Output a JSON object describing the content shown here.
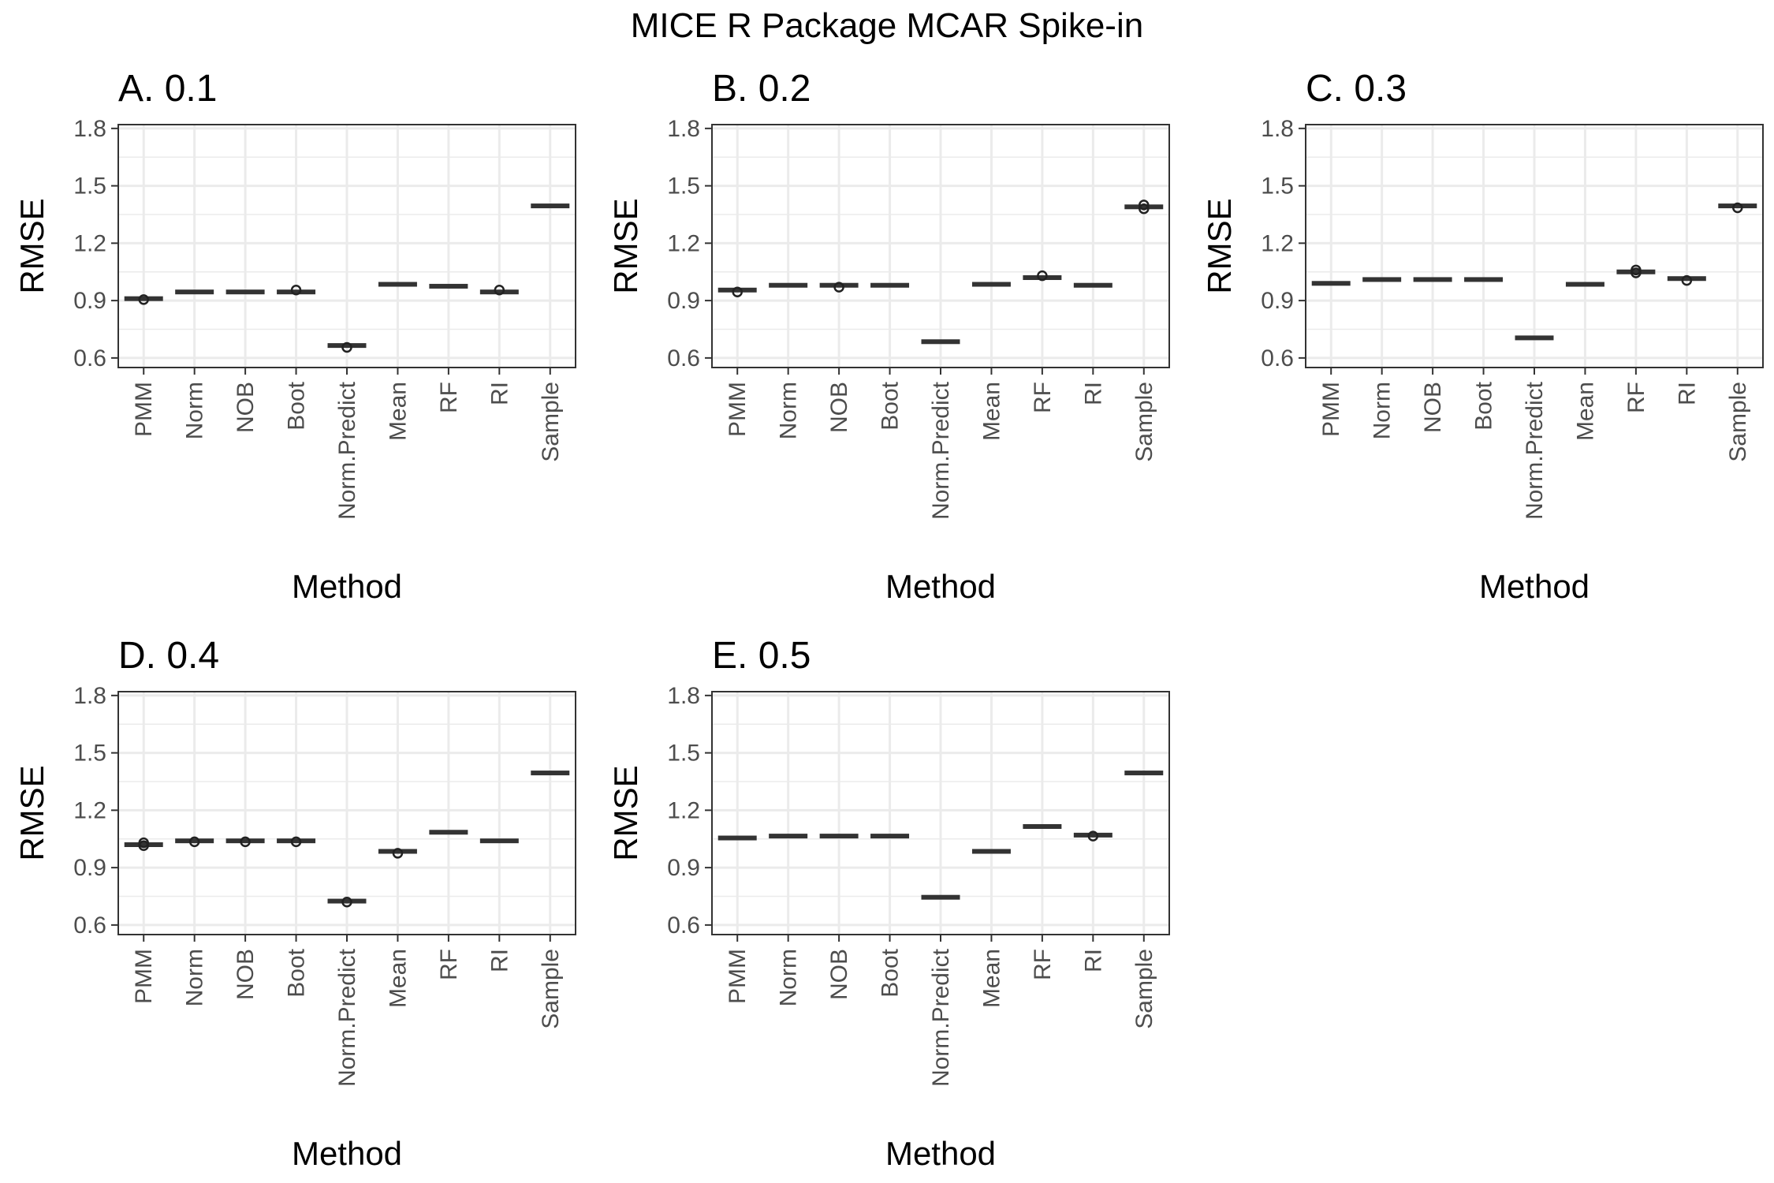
{
  "figure": {
    "title": "MICE R Package MCAR Spike-in"
  },
  "chart_data": [
    {
      "type": "boxplot",
      "title": "A. 0.1",
      "xlabel": "Method",
      "ylabel": "RMSE",
      "ylim": [
        0.55,
        1.82
      ],
      "yticks": [
        0.6,
        0.9,
        1.2,
        1.5,
        1.8
      ],
      "categories": [
        "PMM",
        "Norm",
        "NOB",
        "Boot",
        "Norm.Predict",
        "Mean",
        "RF",
        "RI",
        "Sample"
      ],
      "medians": [
        0.91,
        0.945,
        0.945,
        0.945,
        0.665,
        0.985,
        0.975,
        0.945,
        1.395
      ],
      "outliers": [
        [
          0.905
        ],
        [],
        [],
        [
          0.955
        ],
        [
          0.655
        ],
        [],
        [],
        [
          0.955
        ],
        []
      ],
      "grid": true
    },
    {
      "type": "boxplot",
      "title": "B. 0.2",
      "xlabel": "Method",
      "ylabel": "RMSE",
      "ylim": [
        0.55,
        1.82
      ],
      "yticks": [
        0.6,
        0.9,
        1.2,
        1.5,
        1.8
      ],
      "categories": [
        "PMM",
        "Norm",
        "NOB",
        "Boot",
        "Norm.Predict",
        "Mean",
        "RF",
        "RI",
        "Sample"
      ],
      "medians": [
        0.955,
        0.98,
        0.98,
        0.98,
        0.685,
        0.985,
        1.02,
        0.98,
        1.39
      ],
      "outliers": [
        [
          0.945
        ],
        [],
        [
          0.97
        ],
        [],
        [],
        [],
        [
          1.03
        ],
        [],
        [
          1.38,
          1.4
        ]
      ],
      "grid": true
    },
    {
      "type": "boxplot",
      "title": "C. 0.3",
      "xlabel": "Method",
      "ylabel": "RMSE",
      "ylim": [
        0.55,
        1.82
      ],
      "yticks": [
        0.6,
        0.9,
        1.2,
        1.5,
        1.8
      ],
      "categories": [
        "PMM",
        "Norm",
        "NOB",
        "Boot",
        "Norm.Predict",
        "Mean",
        "RF",
        "RI",
        "Sample"
      ],
      "medians": [
        0.99,
        1.01,
        1.01,
        1.01,
        0.705,
        0.985,
        1.05,
        1.015,
        1.395
      ],
      "outliers": [
        [],
        [],
        [],
        [],
        [],
        [],
        [
          1.06,
          1.045
        ],
        [
          1.005
        ],
        [
          1.385
        ]
      ],
      "grid": true
    },
    {
      "type": "boxplot",
      "title": "D. 0.4",
      "xlabel": "Method",
      "ylabel": "RMSE",
      "ylim": [
        0.55,
        1.82
      ],
      "yticks": [
        0.6,
        0.9,
        1.2,
        1.5,
        1.8
      ],
      "categories": [
        "PMM",
        "Norm",
        "NOB",
        "Boot",
        "Norm.Predict",
        "Mean",
        "RF",
        "RI",
        "Sample"
      ],
      "medians": [
        1.02,
        1.04,
        1.04,
        1.04,
        0.725,
        0.985,
        1.085,
        1.04,
        1.395
      ],
      "outliers": [
        [
          1.015,
          1.03
        ],
        [
          1.035
        ],
        [
          1.035
        ],
        [
          1.035
        ],
        [
          0.72
        ],
        [
          0.975
        ],
        [],
        [],
        []
      ],
      "grid": true
    },
    {
      "type": "boxplot",
      "title": "E. 0.5",
      "xlabel": "Method",
      "ylabel": "RMSE",
      "ylim": [
        0.55,
        1.82
      ],
      "yticks": [
        0.6,
        0.9,
        1.2,
        1.5,
        1.8
      ],
      "categories": [
        "PMM",
        "Norm",
        "NOB",
        "Boot",
        "Norm.Predict",
        "Mean",
        "RF",
        "RI",
        "Sample"
      ],
      "medians": [
        1.055,
        1.065,
        1.065,
        1.065,
        0.745,
        0.985,
        1.115,
        1.07,
        1.395
      ],
      "outliers": [
        [],
        [],
        [],
        [],
        [],
        [],
        [],
        [
          1.065
        ],
        []
      ],
      "grid": true
    }
  ]
}
